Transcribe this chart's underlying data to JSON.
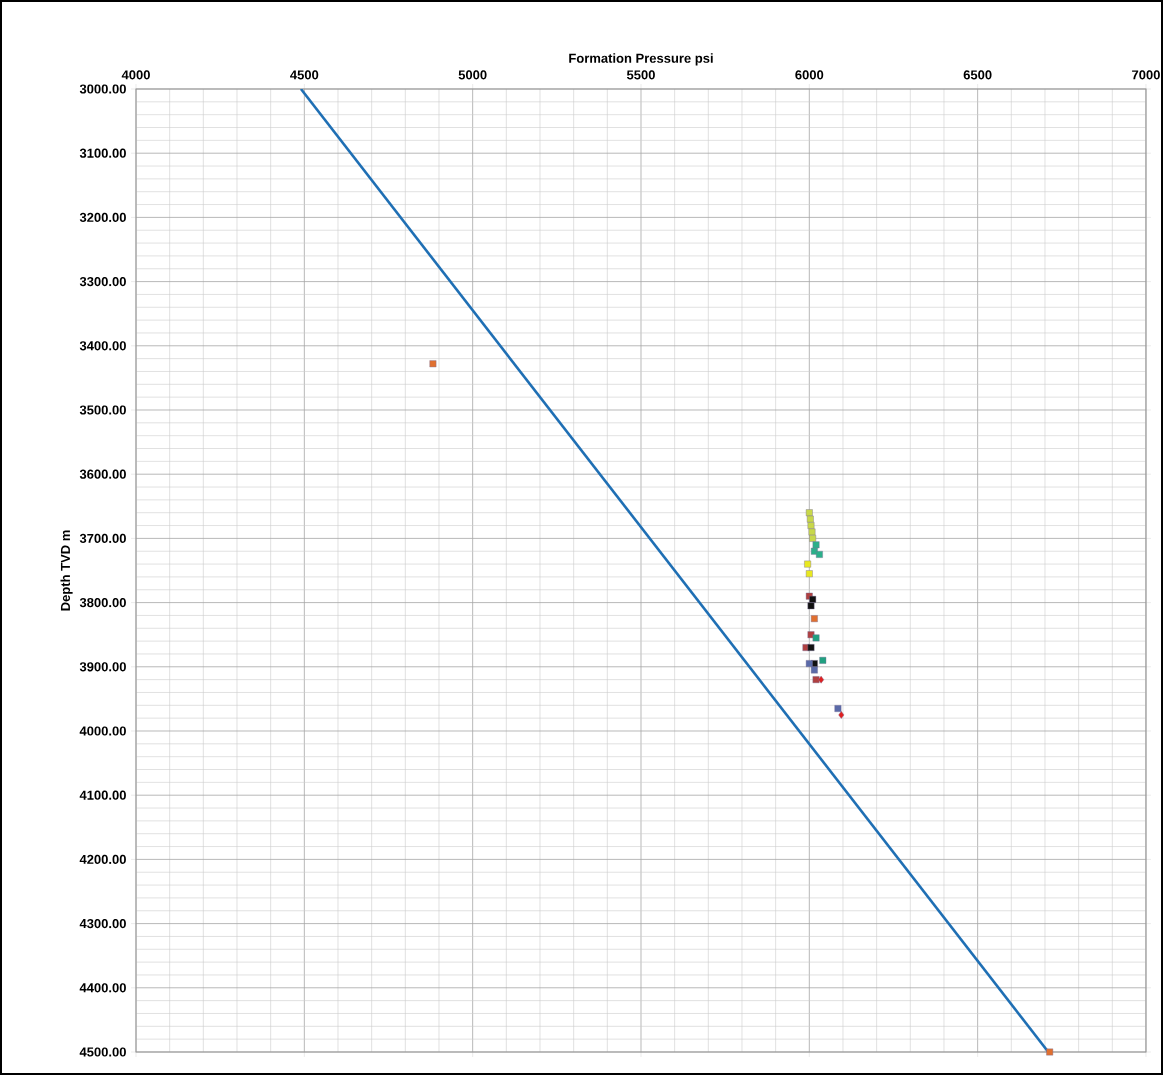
{
  "chart_data": {
    "type": "scatter",
    "xlabel": "Formation Pressure psi",
    "ylabel": "Depth TVD m",
    "xlim": [
      4000,
      7000
    ],
    "ylim": [
      4500,
      3000
    ],
    "grid": true,
    "marker": "square",
    "xticks": [
      4000,
      {
        "value": 4100,
        "label": null
      },
      {
        "value": 4200,
        "label": null
      },
      {
        "value": 4300,
        "label": null
      },
      {
        "value": 4400,
        "label": null
      },
      4500,
      {
        "value": 4600,
        "label": null
      },
      {
        "value": 4700,
        "label": null
      },
      {
        "value": 4800,
        "label": null
      },
      {
        "value": 4900,
        "label": null
      },
      5000,
      {
        "value": 5100,
        "label": null
      },
      {
        "value": 5200,
        "label": null
      },
      {
        "value": 5300,
        "label": null
      },
      {
        "value": 5400,
        "label": null
      },
      5500,
      {
        "value": 5600,
        "label": null
      },
      {
        "value": 5700,
        "label": null
      },
      {
        "value": 5800,
        "label": null
      },
      {
        "value": 5900,
        "label": null
      },
      6000,
      {
        "value": 6100,
        "label": null
      },
      {
        "value": 6200,
        "label": null
      },
      {
        "value": 6300,
        "label": null
      },
      {
        "value": 6400,
        "label": null
      },
      6500,
      {
        "value": 6600,
        "label": null
      },
      {
        "value": 6700,
        "label": null
      },
      {
        "value": 6800,
        "label": null
      },
      {
        "value": 6900,
        "label": null
      },
      7000
    ],
    "yticks": [
      {
        "value": 3000,
        "label": "3000.00"
      },
      {
        "value": 3020,
        "label": null
      },
      {
        "value": 3040,
        "label": null
      },
      {
        "value": 3060,
        "label": null
      },
      {
        "value": 3080,
        "label": null
      },
      {
        "value": 3100,
        "label": "3100.00"
      },
      {
        "value": 3120,
        "label": null
      },
      {
        "value": 3140,
        "label": null
      },
      {
        "value": 3160,
        "label": null
      },
      {
        "value": 3180,
        "label": null
      },
      {
        "value": 3200,
        "label": "3200.00"
      },
      {
        "value": 3220,
        "label": null
      },
      {
        "value": 3240,
        "label": null
      },
      {
        "value": 3260,
        "label": null
      },
      {
        "value": 3280,
        "label": null
      },
      {
        "value": 3300,
        "label": "3300.00"
      },
      {
        "value": 3320,
        "label": null
      },
      {
        "value": 3340,
        "label": null
      },
      {
        "value": 3360,
        "label": null
      },
      {
        "value": 3380,
        "label": null
      },
      {
        "value": 3400,
        "label": "3400.00"
      },
      {
        "value": 3420,
        "label": null
      },
      {
        "value": 3440,
        "label": null
      },
      {
        "value": 3460,
        "label": null
      },
      {
        "value": 3480,
        "label": null
      },
      {
        "value": 3500,
        "label": "3500.00"
      },
      {
        "value": 3520,
        "label": null
      },
      {
        "value": 3540,
        "label": null
      },
      {
        "value": 3560,
        "label": null
      },
      {
        "value": 3580,
        "label": null
      },
      {
        "value": 3600,
        "label": "3600.00"
      },
      {
        "value": 3620,
        "label": null
      },
      {
        "value": 3640,
        "label": null
      },
      {
        "value": 3660,
        "label": null
      },
      {
        "value": 3680,
        "label": null
      },
      {
        "value": 3700,
        "label": "3700.00"
      },
      {
        "value": 3720,
        "label": null
      },
      {
        "value": 3740,
        "label": null
      },
      {
        "value": 3760,
        "label": null
      },
      {
        "value": 3780,
        "label": null
      },
      {
        "value": 3800,
        "label": "3800.00"
      },
      {
        "value": 3820,
        "label": null
      },
      {
        "value": 3840,
        "label": null
      },
      {
        "value": 3860,
        "label": null
      },
      {
        "value": 3880,
        "label": null
      },
      {
        "value": 3900,
        "label": "3900.00"
      },
      {
        "value": 3920,
        "label": null
      },
      {
        "value": 3940,
        "label": null
      },
      {
        "value": 3960,
        "label": null
      },
      {
        "value": 3980,
        "label": null
      },
      {
        "value": 4000,
        "label": "4000.00"
      },
      {
        "value": 4020,
        "label": null
      },
      {
        "value": 4040,
        "label": null
      },
      {
        "value": 4060,
        "label": null
      },
      {
        "value": 4080,
        "label": null
      },
      {
        "value": 4100,
        "label": "4100.00"
      },
      {
        "value": 4120,
        "label": null
      },
      {
        "value": 4140,
        "label": null
      },
      {
        "value": 4160,
        "label": null
      },
      {
        "value": 4180,
        "label": null
      },
      {
        "value": 4200,
        "label": "4200.00"
      },
      {
        "value": 4220,
        "label": null
      },
      {
        "value": 4240,
        "label": null
      },
      {
        "value": 4260,
        "label": null
      },
      {
        "value": 4280,
        "label": null
      },
      {
        "value": 4300,
        "label": "4300.00"
      },
      {
        "value": 4320,
        "label": null
      },
      {
        "value": 4340,
        "label": null
      },
      {
        "value": 4360,
        "label": null
      },
      {
        "value": 4380,
        "label": null
      },
      {
        "value": 4400,
        "label": "4400.00"
      },
      {
        "value": 4420,
        "label": null
      },
      {
        "value": 4440,
        "label": null
      },
      {
        "value": 4460,
        "label": null
      },
      {
        "value": 4480,
        "label": null
      },
      {
        "value": 4500,
        "label": "4500.00"
      }
    ],
    "series": [
      {
        "type": "line",
        "color": "#1f6fb4",
        "x": [
          4490,
          6710
        ],
        "values": [
          3000,
          4500
        ],
        "marker": "none"
      },
      {
        "color": "#c8d84a",
        "x": [
          6000,
          6003,
          6005,
          6008,
          6010
        ],
        "values": [
          3660,
          3670,
          3680,
          3690,
          3700
        ]
      },
      {
        "color": "#2bb08a",
        "x": [
          6015,
          6020,
          6030
        ],
        "values": [
          3720,
          3710,
          3725
        ]
      },
      {
        "color": "#e8e820",
        "x": [
          5995,
          6000
        ],
        "values": [
          3740,
          3755
        ]
      },
      {
        "color": "#b04040",
        "x": [
          6000,
          6005,
          5990,
          6020
        ],
        "values": [
          3790,
          3850,
          3870,
          3920
        ]
      },
      {
        "color": "#111111",
        "x": [
          6010,
          6005,
          6005,
          6015
        ],
        "values": [
          3795,
          3805,
          3870,
          3895
        ]
      },
      {
        "color": "#e07030",
        "x": [
          6015,
          4882,
          6714
        ],
        "values": [
          3825,
          3428,
          4500
        ]
      },
      {
        "color": "#20a080",
        "x": [
          6020,
          6040
        ],
        "values": [
          3855,
          3890
        ]
      },
      {
        "color": "#5a6aa8",
        "x": [
          6000,
          6015,
          6085
        ],
        "values": [
          3895,
          3905,
          3965
        ]
      },
      {
        "color": "#e02020",
        "x": [
          6035,
          6095
        ],
        "values": [
          3920,
          3975
        ],
        "marker": "diamond"
      }
    ]
  }
}
